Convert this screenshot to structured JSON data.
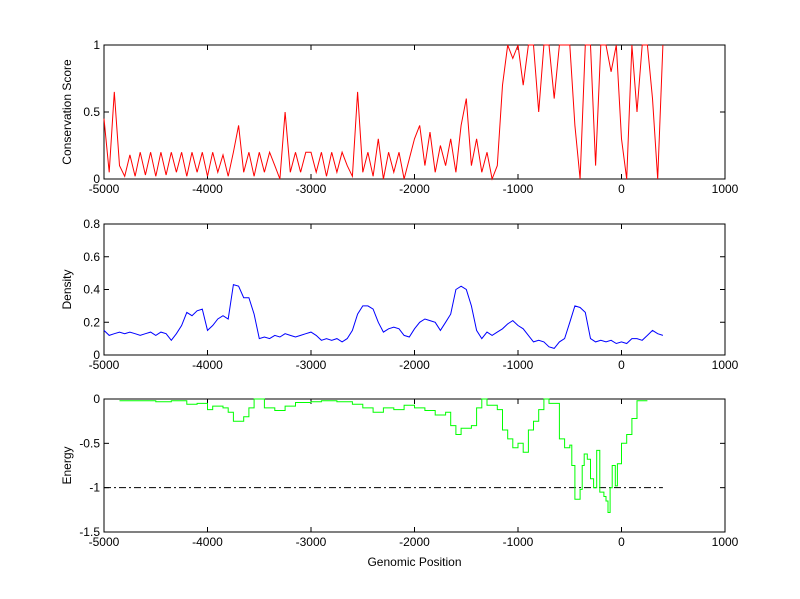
{
  "chart_data": [
    {
      "type": "line",
      "ylabel": "Conservation Score",
      "xlabel": "",
      "xlim": [
        -5000,
        1000
      ],
      "ylim": [
        0,
        1
      ],
      "xticks": [
        -5000,
        -4000,
        -3000,
        -2000,
        -1000,
        0,
        1000
      ],
      "yticks": [
        0,
        0.5,
        1
      ],
      "color": "#ff0000",
      "x_start": -5000,
      "x_step": 50,
      "values": [
        0.45,
        0.05,
        0.65,
        0.1,
        0.02,
        0.18,
        0.02,
        0.2,
        0.03,
        0.2,
        0.02,
        0.2,
        0.03,
        0.2,
        0.05,
        0.2,
        0.02,
        0.2,
        0.05,
        0.2,
        0.02,
        0.2,
        0.05,
        0.18,
        0.02,
        0.2,
        0.4,
        0.05,
        0.2,
        0.02,
        0.2,
        0.05,
        0.2,
        0.1,
        0.0,
        0.5,
        0.05,
        0.2,
        0.05,
        0.2,
        0.2,
        0.05,
        0.2,
        0.02,
        0.2,
        0.05,
        0.2,
        0.1,
        0.02,
        0.65,
        0.05,
        0.2,
        0.02,
        0.3,
        0.0,
        0.2,
        0.05,
        0.2,
        0.0,
        0.15,
        0.3,
        0.4,
        0.1,
        0.35,
        0.05,
        0.25,
        0.1,
        0.3,
        0.05,
        0.4,
        0.6,
        0.1,
        0.3,
        0.05,
        0.2,
        0.0,
        0.1,
        0.7,
        1,
        0.9,
        1,
        0.7,
        1,
        1,
        0.5,
        1,
        1,
        0.6,
        1,
        1,
        1,
        0.4,
        0,
        1,
        1,
        0.1,
        1,
        1,
        0.8,
        1,
        0.3,
        0,
        1,
        0.5,
        1,
        1,
        0.6,
        0.0,
        1
      ]
    },
    {
      "type": "line",
      "ylabel": "Density",
      "xlabel": "",
      "xlim": [
        -5000,
        1000
      ],
      "ylim": [
        0,
        0.8
      ],
      "xticks": [
        -5000,
        -4000,
        -3000,
        -2000,
        -1000,
        0,
        1000
      ],
      "yticks": [
        0,
        0.2,
        0.4,
        0.6,
        0.8
      ],
      "color": "#0000ff",
      "x_start": -5000,
      "x_step": 50,
      "values": [
        0.15,
        0.12,
        0.13,
        0.14,
        0.13,
        0.14,
        0.13,
        0.12,
        0.13,
        0.14,
        0.12,
        0.14,
        0.13,
        0.09,
        0.13,
        0.18,
        0.26,
        0.24,
        0.27,
        0.28,
        0.15,
        0.18,
        0.22,
        0.24,
        0.22,
        0.43,
        0.42,
        0.35,
        0.35,
        0.25,
        0.1,
        0.11,
        0.1,
        0.12,
        0.11,
        0.13,
        0.12,
        0.11,
        0.12,
        0.13,
        0.14,
        0.12,
        0.09,
        0.1,
        0.09,
        0.1,
        0.08,
        0.1,
        0.15,
        0.25,
        0.3,
        0.3,
        0.28,
        0.2,
        0.14,
        0.16,
        0.17,
        0.16,
        0.12,
        0.11,
        0.16,
        0.2,
        0.22,
        0.21,
        0.2,
        0.15,
        0.2,
        0.25,
        0.4,
        0.42,
        0.4,
        0.3,
        0.15,
        0.1,
        0.14,
        0.12,
        0.14,
        0.16,
        0.19,
        0.21,
        0.18,
        0.16,
        0.12,
        0.08,
        0.09,
        0.08,
        0.05,
        0.04,
        0.08,
        0.1,
        0.2,
        0.3,
        0.29,
        0.26,
        0.1,
        0.08,
        0.09,
        0.08,
        0.09,
        0.07,
        0.08,
        0.07,
        0.1,
        0.1,
        0.09,
        0.12,
        0.15,
        0.13,
        0.12
      ]
    },
    {
      "type": "line",
      "ylabel": "Energy",
      "xlabel": "Genomic Position",
      "xlim": [
        -5000,
        1000
      ],
      "ylim": [
        -1.5,
        0
      ],
      "xticks": [
        -5000,
        -4000,
        -3000,
        -2000,
        -1000,
        0,
        1000
      ],
      "yticks": [
        -1.5,
        -1,
        -0.5,
        0
      ],
      "color": "#00ff00",
      "threshold": {
        "y": -1,
        "x_range": [
          -5000,
          400
        ],
        "color": "#000000",
        "style": "dash-dot"
      },
      "steps": [
        [
          -4850,
          -0.02
        ],
        [
          -4650,
          -0.02
        ],
        [
          -4500,
          -0.03
        ],
        [
          -4350,
          -0.02
        ],
        [
          -4200,
          -0.06
        ],
        [
          -4100,
          -0.05
        ],
        [
          -4000,
          -0.12
        ],
        [
          -3950,
          -0.08
        ],
        [
          -3850,
          -0.1
        ],
        [
          -3800,
          -0.15
        ],
        [
          -3750,
          -0.25
        ],
        [
          -3650,
          -0.2
        ],
        [
          -3600,
          -0.1
        ],
        [
          -3550,
          0
        ],
        [
          -3450,
          -0.1
        ],
        [
          -3350,
          -0.13
        ],
        [
          -3250,
          -0.08
        ],
        [
          -3150,
          -0.04
        ],
        [
          -3000,
          -0.03
        ],
        [
          -2900,
          -0.02
        ],
        [
          -2750,
          -0.03
        ],
        [
          -2600,
          -0.06
        ],
        [
          -2500,
          -0.1
        ],
        [
          -2400,
          -0.15
        ],
        [
          -2300,
          -0.1
        ],
        [
          -2200,
          -0.12
        ],
        [
          -2100,
          -0.07
        ],
        [
          -2000,
          -0.1
        ],
        [
          -1900,
          -0.13
        ],
        [
          -1800,
          -0.18
        ],
        [
          -1700,
          -0.15
        ],
        [
          -1650,
          -0.3
        ],
        [
          -1600,
          -0.4
        ],
        [
          -1550,
          -0.33
        ],
        [
          -1450,
          -0.3
        ],
        [
          -1400,
          -0.1
        ],
        [
          -1350,
          0
        ],
        [
          -1300,
          -0.07
        ],
        [
          -1200,
          -0.12
        ],
        [
          -1150,
          -0.35
        ],
        [
          -1100,
          -0.45
        ],
        [
          -1050,
          -0.55
        ],
        [
          -1000,
          -0.5
        ],
        [
          -950,
          -0.6
        ],
        [
          -900,
          -0.35
        ],
        [
          -850,
          -0.25
        ],
        [
          -800,
          -0.12
        ],
        [
          -750,
          0
        ],
        [
          -700,
          -0.05
        ],
        [
          -600,
          -0.45
        ],
        [
          -550,
          -0.55
        ],
        [
          -500,
          -0.52
        ],
        [
          -480,
          -0.75
        ],
        [
          -450,
          -1.13
        ],
        [
          -400,
          -1.02
        ],
        [
          -380,
          -0.75
        ],
        [
          -360,
          -0.62
        ],
        [
          -330,
          -0.68
        ],
        [
          -300,
          -0.9
        ],
        [
          -270,
          -1.0
        ],
        [
          -240,
          -0.58
        ],
        [
          -210,
          -1.05
        ],
        [
          -170,
          -1.1
        ],
        [
          -150,
          -1.15
        ],
        [
          -130,
          -1.28
        ],
        [
          -110,
          -1.0
        ],
        [
          -90,
          -0.75
        ],
        [
          -60,
          -0.98
        ],
        [
          -40,
          -0.73
        ],
        [
          0,
          -0.5
        ],
        [
          50,
          -0.4
        ],
        [
          100,
          -0.22
        ],
        [
          150,
          -0.02
        ],
        [
          200,
          -0.02
        ]
      ]
    }
  ]
}
